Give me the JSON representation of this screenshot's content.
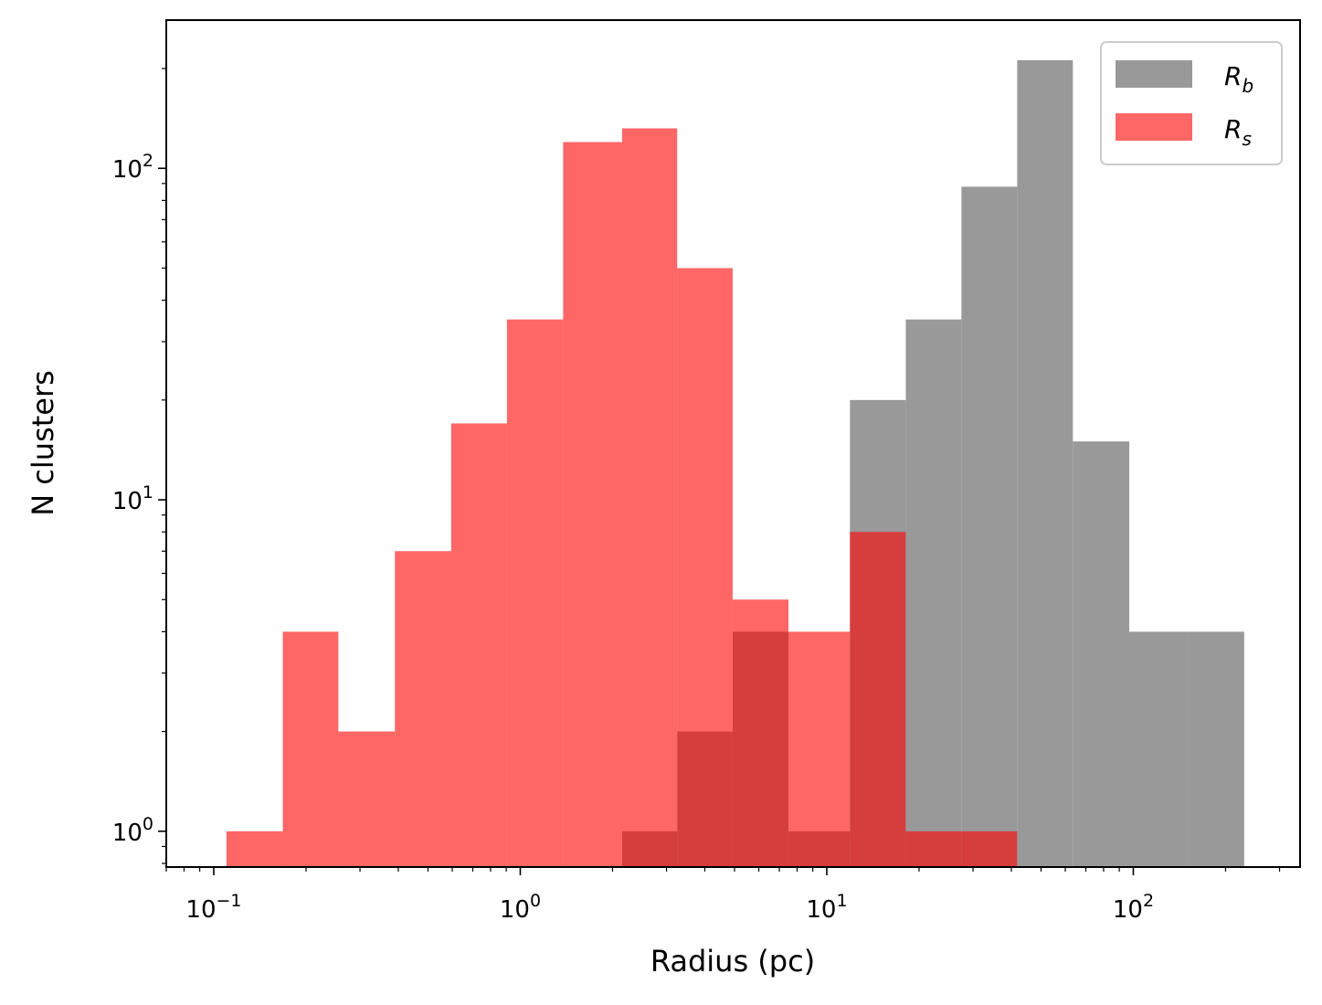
{
  "chart_data": {
    "type": "histogram",
    "xlabel": "Radius (pc)",
    "ylabel": "N clusters",
    "xscale": "log",
    "yscale": "log",
    "xlim": [
      0.07,
      350
    ],
    "ylim": [
      0.78,
      280
    ],
    "grid": false,
    "legend_position": "upper right",
    "x_ticks": [
      {
        "value": 0.1,
        "base": "10",
        "exp": "−1"
      },
      {
        "value": 1,
        "base": "10",
        "exp": "0"
      },
      {
        "value": 10,
        "base": "10",
        "exp": "1"
      },
      {
        "value": 100,
        "base": "10",
        "exp": "2"
      }
    ],
    "y_ticks": [
      {
        "value": 1,
        "base": "10",
        "exp": "0"
      },
      {
        "value": 10,
        "base": "10",
        "exp": "1"
      },
      {
        "value": 100,
        "base": "10",
        "exp": "2"
      }
    ],
    "bin_edges": [
      0.11,
      0.165,
      0.25,
      0.38,
      0.57,
      0.86,
      1.3,
      1.95,
      2.95,
      4.45,
      6.7,
      10.1,
      15.2,
      23,
      34.7,
      52.3,
      79,
      119,
      180,
      271
    ],
    "series": [
      {
        "name": "R_b",
        "label_main": "R",
        "label_sub": "b",
        "color": "#999999",
        "opacity": 1.0,
        "bins": [
          {
            "x0": 2.15,
            "x1": 3.25,
            "y": 1
          },
          {
            "x0": 3.25,
            "x1": 4.93,
            "y": 2
          },
          {
            "x0": 4.93,
            "x1": 7.5,
            "y": 4
          },
          {
            "x0": 7.5,
            "x1": 11.9,
            "y": 1
          },
          {
            "x0": 11.9,
            "x1": 18.1,
            "y": 20
          },
          {
            "x0": 18.1,
            "x1": 27.5,
            "y": 35
          },
          {
            "x0": 27.5,
            "x1": 41.8,
            "y": 88
          },
          {
            "x0": 41.8,
            "x1": 63.5,
            "y": 212
          },
          {
            "x0": 63.5,
            "x1": 97,
            "y": 15
          },
          {
            "x0": 97,
            "x1": 150,
            "y": 4
          },
          {
            "x0": 150,
            "x1": 230,
            "y": 4
          }
        ]
      },
      {
        "name": "R_s",
        "label_main": "R",
        "label_sub": "s",
        "color": "#ff0000",
        "opacity": 0.6,
        "bins": [
          {
            "x0": 0.11,
            "x1": 0.168,
            "y": 1
          },
          {
            "x0": 0.168,
            "x1": 0.255,
            "y": 4
          },
          {
            "x0": 0.255,
            "x1": 0.39,
            "y": 2
          },
          {
            "x0": 0.39,
            "x1": 0.595,
            "y": 7
          },
          {
            "x0": 0.595,
            "x1": 0.905,
            "y": 17
          },
          {
            "x0": 0.905,
            "x1": 1.38,
            "y": 35
          },
          {
            "x0": 1.38,
            "x1": 2.15,
            "y": 120
          },
          {
            "x0": 2.15,
            "x1": 3.25,
            "y": 132
          },
          {
            "x0": 3.25,
            "x1": 4.93,
            "y": 50
          },
          {
            "x0": 4.93,
            "x1": 7.5,
            "y": 5
          },
          {
            "x0": 7.5,
            "x1": 11.9,
            "y": 4
          },
          {
            "x0": 11.9,
            "x1": 18.1,
            "y": 8
          },
          {
            "x0": 18.1,
            "x1": 27.5,
            "y": 1
          },
          {
            "x0": 27.5,
            "x1": 41.8,
            "y": 1
          }
        ]
      }
    ]
  }
}
